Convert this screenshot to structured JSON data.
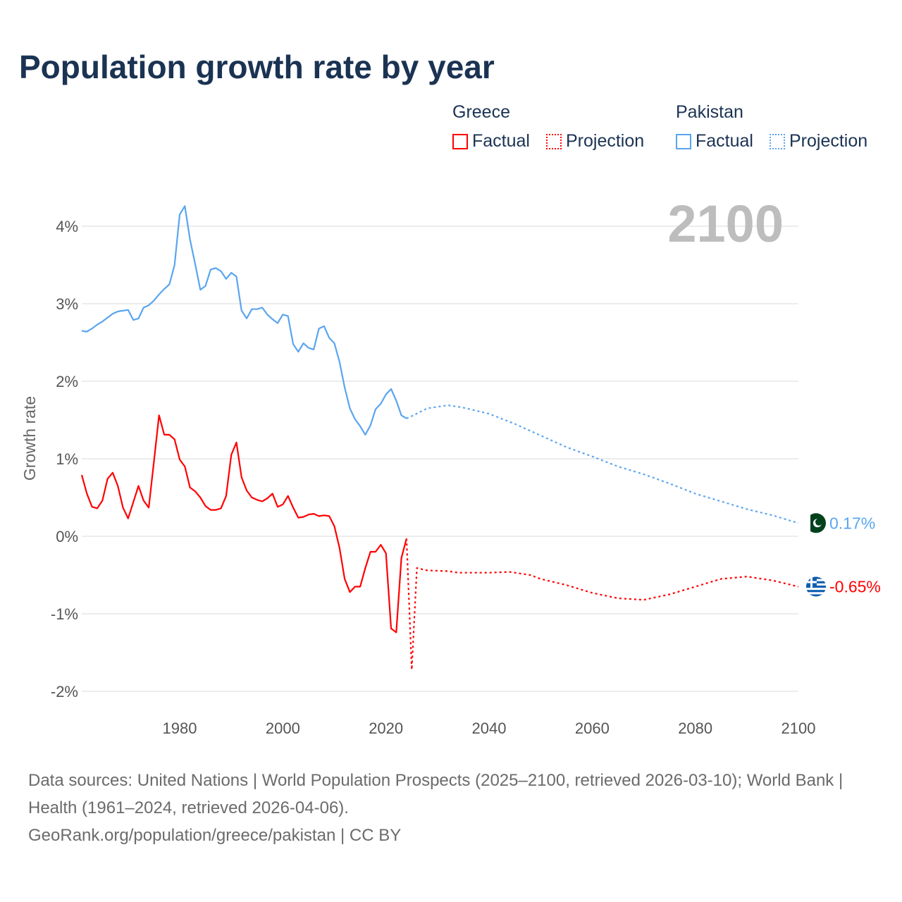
{
  "title": "Population growth rate by year",
  "legend": {
    "groups": [
      {
        "name": "Greece",
        "color": "#ff0000",
        "factual": "Factual",
        "projection": "Projection"
      },
      {
        "name": "Pakistan",
        "color": "#5aa5f0",
        "factual": "Factual",
        "projection": "Projection"
      }
    ]
  },
  "year_label": "2100",
  "footer": {
    "sources": "Data sources: United Nations | World Population Prospects (2025–2100, retrieved 2026-03-10); World Bank | Health (1961–2024, retrieved 2026-04-06).",
    "credit": "GeoRank.org/population/greece/pakistan | CC BY"
  },
  "chart_data": {
    "type": "line",
    "title": "Population growth rate by year",
    "xlabel": "",
    "ylabel": "Growth rate",
    "xlim": [
      1961,
      2100
    ],
    "ylim": [
      -2.2,
      4.4
    ],
    "xticks": [
      1980,
      2000,
      2020,
      2040,
      2060,
      2080,
      2100
    ],
    "yticks": [
      {
        "v": 4,
        "label": "4%"
      },
      {
        "v": 3,
        "label": "3%"
      },
      {
        "v": 2,
        "label": "2%"
      },
      {
        "v": 1,
        "label": "1%"
      },
      {
        "v": 0,
        "label": "0%"
      },
      {
        "v": -1,
        "label": "-1%"
      },
      {
        "v": -2,
        "label": "-2%"
      }
    ],
    "grid": true,
    "legend_position": "top-right",
    "series": [
      {
        "name": "Greece Factual",
        "country": "Greece",
        "kind": "factual",
        "color": "#ff0000",
        "x": [
          1961,
          1962,
          1963,
          1964,
          1965,
          1966,
          1967,
          1968,
          1969,
          1970,
          1971,
          1972,
          1973,
          1974,
          1975,
          1976,
          1977,
          1978,
          1979,
          1980,
          1981,
          1982,
          1983,
          1984,
          1985,
          1986,
          1987,
          1988,
          1989,
          1990,
          1991,
          1992,
          1993,
          1994,
          1995,
          1996,
          1997,
          1998,
          1999,
          2000,
          2001,
          2002,
          2003,
          2004,
          2005,
          2006,
          2007,
          2008,
          2009,
          2010,
          2011,
          2012,
          2013,
          2014,
          2015,
          2016,
          2017,
          2018,
          2019,
          2020,
          2021,
          2022,
          2023,
          2024
        ],
        "y": [
          0.79,
          0.55,
          0.38,
          0.36,
          0.46,
          0.74,
          0.82,
          0.65,
          0.37,
          0.23,
          0.44,
          0.65,
          0.46,
          0.37,
          0.96,
          1.56,
          1.31,
          1.31,
          1.25,
          0.99,
          0.9,
          0.63,
          0.58,
          0.5,
          0.39,
          0.34,
          0.34,
          0.36,
          0.52,
          1.05,
          1.21,
          0.76,
          0.59,
          0.5,
          0.47,
          0.45,
          0.49,
          0.55,
          0.38,
          0.41,
          0.52,
          0.37,
          0.24,
          0.25,
          0.28,
          0.29,
          0.26,
          0.27,
          0.26,
          0.13,
          -0.15,
          -0.55,
          -0.72,
          -0.65,
          -0.65,
          -0.41,
          -0.2,
          -0.2,
          -0.11,
          -0.22,
          -1.19,
          -1.24,
          -0.28,
          -0.03
        ]
      },
      {
        "name": "Greece Projection",
        "country": "Greece",
        "kind": "projection",
        "color": "#ff0000",
        "x": [
          2024,
          2025,
          2026,
          2028,
          2032,
          2034,
          2040,
          2044,
          2048,
          2050,
          2055,
          2060,
          2065,
          2070,
          2075,
          2080,
          2085,
          2090,
          2095,
          2100
        ],
        "y": [
          -0.03,
          -1.72,
          -0.41,
          -0.44,
          -0.45,
          -0.47,
          -0.47,
          -0.46,
          -0.5,
          -0.55,
          -0.63,
          -0.73,
          -0.8,
          -0.82,
          -0.75,
          -0.65,
          -0.55,
          -0.52,
          -0.57,
          -0.65
        ]
      },
      {
        "name": "Pakistan Factual",
        "country": "Pakistan",
        "kind": "factual",
        "color": "#5aa5f0",
        "x": [
          1961,
          1962,
          1963,
          1964,
          1965,
          1966,
          1967,
          1968,
          1969,
          1970,
          1971,
          1972,
          1973,
          1974,
          1975,
          1976,
          1977,
          1978,
          1979,
          1980,
          1981,
          1982,
          1983,
          1984,
          1985,
          1986,
          1987,
          1988,
          1989,
          1990,
          1991,
          1992,
          1993,
          1994,
          1995,
          1996,
          1997,
          1998,
          1999,
          2000,
          2001,
          2002,
          2003,
          2004,
          2005,
          2006,
          2007,
          2008,
          2009,
          2010,
          2011,
          2012,
          2013,
          2014,
          2015,
          2016,
          2017,
          2018,
          2019,
          2020,
          2021,
          2022,
          2023,
          2024
        ],
        "y": [
          2.65,
          2.64,
          2.68,
          2.73,
          2.77,
          2.82,
          2.87,
          2.9,
          2.91,
          2.92,
          2.79,
          2.81,
          2.95,
          2.98,
          3.04,
          3.12,
          3.19,
          3.25,
          3.5,
          4.15,
          4.26,
          3.83,
          3.51,
          3.18,
          3.23,
          3.44,
          3.46,
          3.42,
          3.32,
          3.4,
          3.35,
          2.91,
          2.81,
          2.93,
          2.93,
          2.95,
          2.86,
          2.8,
          2.75,
          2.86,
          2.84,
          2.48,
          2.38,
          2.49,
          2.43,
          2.41,
          2.68,
          2.71,
          2.56,
          2.49,
          2.25,
          1.92,
          1.65,
          1.51,
          1.42,
          1.31,
          1.43,
          1.64,
          1.71,
          1.83,
          1.9,
          1.75,
          1.56,
          1.52
        ]
      },
      {
        "name": "Pakistan Projection",
        "country": "Pakistan",
        "kind": "projection",
        "color": "#5aa5f0",
        "x": [
          2024,
          2025,
          2028,
          2032,
          2035,
          2040,
          2045,
          2050,
          2055,
          2060,
          2065,
          2070,
          2075,
          2080,
          2085,
          2090,
          2095,
          2100
        ],
        "y": [
          1.52,
          1.55,
          1.65,
          1.69,
          1.66,
          1.58,
          1.45,
          1.3,
          1.15,
          1.03,
          0.9,
          0.8,
          0.68,
          0.55,
          0.45,
          0.35,
          0.27,
          0.17
        ]
      }
    ],
    "end_labels": [
      {
        "country": "Pakistan",
        "value": 0.17,
        "label": "0.17%",
        "color": "#5aa5f0"
      },
      {
        "country": "Greece",
        "value": -0.65,
        "label": "-0.65%",
        "color": "#ff0000"
      }
    ]
  }
}
